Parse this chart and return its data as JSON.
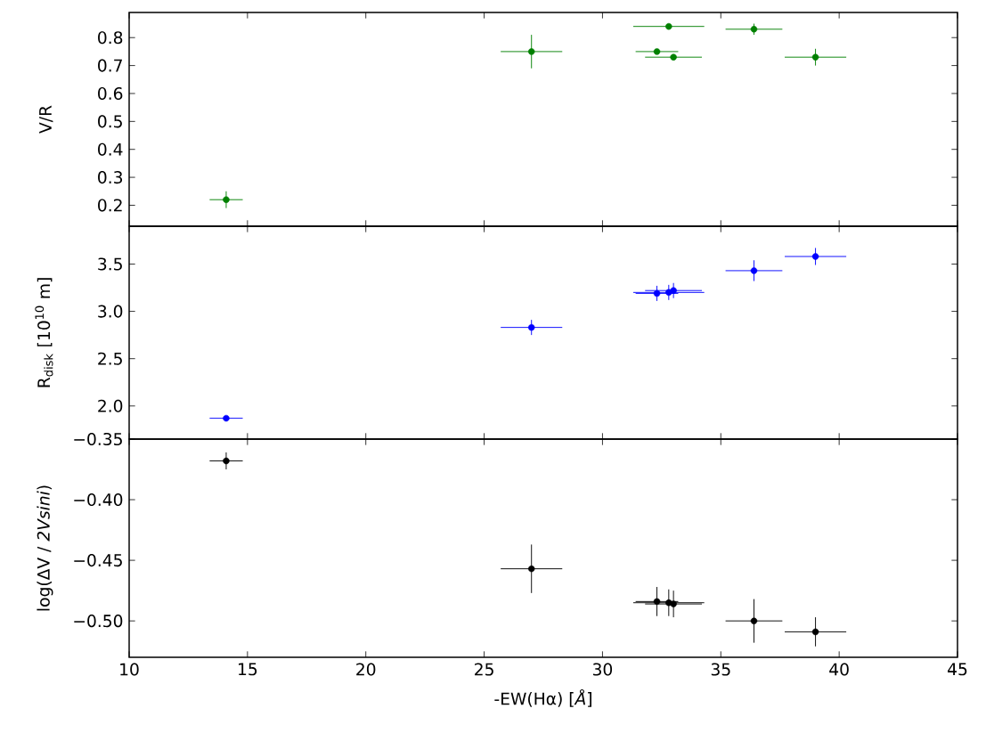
{
  "chart_data": [
    {
      "type": "scatter",
      "ylabel": "V/R",
      "xlim": [
        10,
        45
      ],
      "xticks": [
        10,
        15,
        20,
        25,
        30,
        35,
        40,
        45
      ],
      "ylim": [
        0.125,
        0.89
      ],
      "yticks": [
        0.2,
        0.3,
        0.4,
        0.5,
        0.6,
        0.7,
        0.8
      ],
      "tick_labels": "y",
      "marker": "circle",
      "x": [
        14.1,
        27.0,
        32.8,
        32.3,
        33.0,
        36.4,
        39.0
      ],
      "series": [
        {
          "color": "#008000",
          "values": [
            0.22,
            0.75,
            0.84,
            0.75,
            0.73,
            0.83,
            0.73
          ],
          "errors": [
            0.03,
            0.06,
            null,
            null,
            0.01,
            0.02,
            0.03
          ],
          "xerrors": [
            0.7,
            1.3,
            1.5,
            0.9,
            1.2,
            1.2,
            1.3
          ]
        }
      ]
    },
    {
      "type": "scatter",
      "ylabel": "R$_{disk}$ [10$^{10}$ m]",
      "xlim": [
        10,
        45
      ],
      "xticks": [
        10,
        15,
        20,
        25,
        30,
        35,
        40,
        45
      ],
      "ylim": [
        1.65,
        3.9
      ],
      "yticks": [
        {
          "value": 2,
          "label": "2.0"
        },
        {
          "value": 2.5,
          "label": "2.5"
        },
        {
          "value": 3,
          "label": "3.0"
        },
        {
          "value": 3.5,
          "label": "3.5"
        }
      ],
      "tick_labels": "y",
      "marker": "circle",
      "x": [
        14.1,
        27.0,
        32.3,
        32.8,
        33.0,
        36.4,
        39.0
      ],
      "series": [
        {
          "color": "#0000ff",
          "values": [
            1.87,
            2.83,
            3.19,
            3.2,
            3.22,
            3.43,
            3.58
          ],
          "errors": [
            null,
            0.08,
            0.08,
            0.08,
            0.08,
            0.11,
            0.09
          ],
          "xerrors": [
            0.7,
            1.3,
            0.9,
            1.5,
            1.2,
            1.2,
            1.3
          ]
        }
      ]
    },
    {
      "type": "scatter",
      "ylabel": "log(ΔV / *2Vsini*)",
      "xlabel": "-EW(Hα) [*Å*]",
      "xlim": [
        10,
        45
      ],
      "xticks": [
        10,
        15,
        20,
        25,
        30,
        35,
        40,
        45
      ],
      "ylim": [
        -0.53,
        -0.35
      ],
      "yticks": [
        {
          "value": -0.5,
          "label": "−0.50"
        },
        {
          "value": -0.45,
          "label": "−0.45"
        },
        {
          "value": -0.4,
          "label": "−0.40"
        },
        {
          "value": -0.35,
          "label": "−0.35"
        }
      ],
      "marker": "circle",
      "x": [
        14.1,
        27.0,
        32.3,
        32.8,
        33.0,
        36.4,
        39.0
      ],
      "series": [
        {
          "color": "#000000",
          "values": [
            -0.368,
            -0.457,
            -0.484,
            -0.485,
            -0.486,
            -0.5,
            -0.509
          ],
          "errors": [
            0.007,
            0.02,
            0.012,
            0.011,
            0.011,
            0.018,
            0.012
          ],
          "xerrors": [
            0.7,
            1.3,
            0.9,
            1.5,
            1.2,
            1.2,
            1.3
          ]
        }
      ]
    }
  ]
}
